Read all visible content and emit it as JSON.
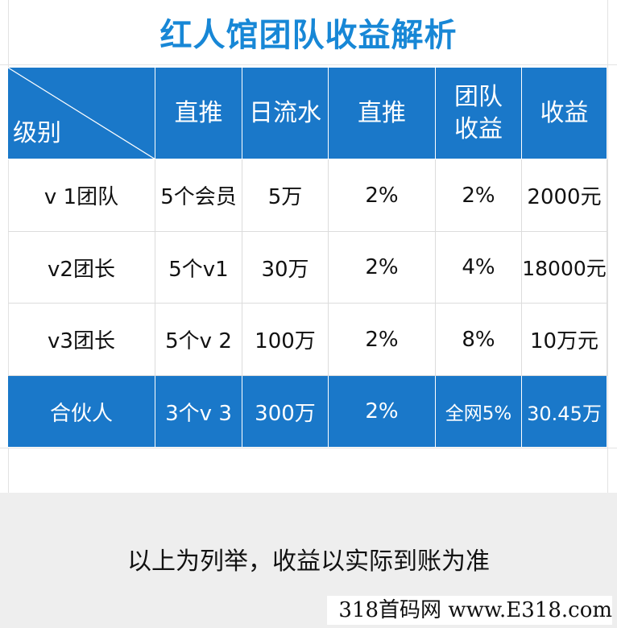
{
  "title": "红人馆团队收益解析",
  "header": {
    "level": "级别",
    "col1": "直推",
    "col2": "日流水",
    "col3": "直推",
    "col4_line1": "团队",
    "col4_line2": "收益",
    "col5": "收益"
  },
  "rows": [
    {
      "level": "v 1团队",
      "direct": "5个会员",
      "flow": "5万",
      "direct_pct": "2%",
      "team_pct": "2%",
      "income": "2000元"
    },
    {
      "level": "v2团长",
      "direct": "5个v1",
      "flow": "30万",
      "direct_pct": "2%",
      "team_pct": "4%",
      "income": "18000元"
    },
    {
      "level": "v3团长",
      "direct": "5个v 2",
      "flow": "100万",
      "direct_pct": "2%",
      "team_pct": "8%",
      "income": "10万元"
    },
    {
      "level": "合伙人",
      "direct": "3个v 3",
      "flow": "300万",
      "direct_pct": "2%",
      "team_pct": "全网5%",
      "income": "30.45万"
    }
  ],
  "note": "以上为列举，收益以实际到账为准",
  "watermark": "318首码网 www.E318.com",
  "colors": {
    "title": "#1787d6",
    "header_bg": "#1a78c9",
    "note_bg": "#eeeeee"
  }
}
